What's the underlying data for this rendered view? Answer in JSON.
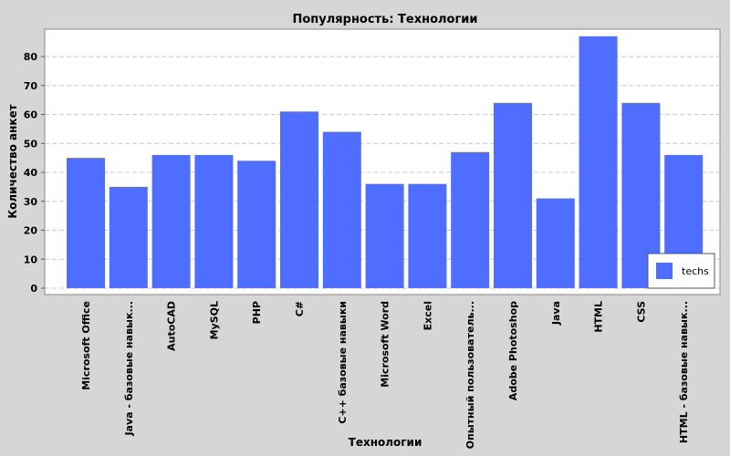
{
  "chart_data": {
    "type": "bar",
    "title": "Популярность: Технологии",
    "xlabel": "Технологии",
    "ylabel": "Количество анкет",
    "categories": [
      "Microsoft Office",
      "Java - базовые навык...",
      "AutoCAD",
      "MySQL",
      "PHP",
      "C#",
      "C++ базовые навыки",
      "Microsoft Word",
      "Excel",
      "Опытный пользователь...",
      "Adobe Photoshop",
      "Java",
      "HTML",
      "CSS",
      "HTML - базовые навык..."
    ],
    "series": [
      {
        "name": "techs",
        "values": [
          45,
          35,
          46,
          46,
          44,
          61,
          54,
          36,
          36,
          47,
          64,
          31,
          87,
          64,
          46
        ]
      }
    ],
    "ylim": [
      0,
      90
    ],
    "yticks": [
      0,
      10,
      20,
      30,
      40,
      50,
      60,
      70,
      80
    ],
    "grid": true,
    "legend_position": "bottom-right"
  },
  "colors": {
    "bar": "#4f6dff",
    "background": "#d6d6d6",
    "plot_background": "#ffffff",
    "grid": "#c8c8c8"
  }
}
